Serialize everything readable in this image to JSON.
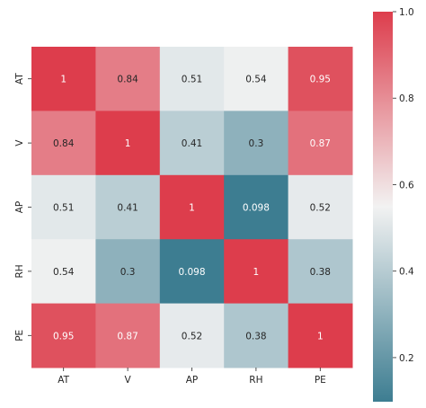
{
  "chart_data": {
    "type": "heatmap",
    "title": "",
    "xlabel": "",
    "ylabel": "",
    "x_labels": [
      "AT",
      "V",
      "AP",
      "RH",
      "PE"
    ],
    "y_labels": [
      "AT",
      "V",
      "AP",
      "RH",
      "PE"
    ],
    "values": [
      [
        1,
        0.84,
        0.51,
        0.54,
        0.95
      ],
      [
        0.84,
        1,
        0.41,
        0.3,
        0.87
      ],
      [
        0.51,
        0.41,
        1,
        0.098,
        0.52
      ],
      [
        0.54,
        0.3,
        0.098,
        1,
        0.38
      ],
      [
        0.95,
        0.87,
        0.52,
        0.38,
        1
      ]
    ],
    "annotations": [
      [
        "1",
        "0.84",
        "0.51",
        "0.54",
        "0.95"
      ],
      [
        "0.84",
        "1",
        "0.41",
        "0.3",
        "0.87"
      ],
      [
        "0.51",
        "0.41",
        "1",
        "0.098",
        "0.52"
      ],
      [
        "0.54",
        "0.3",
        "0.098",
        "1",
        "0.38"
      ],
      [
        "0.95",
        "0.87",
        "0.52",
        "0.38",
        "1"
      ]
    ],
    "colorbar": {
      "range": [
        0.098,
        1.0
      ],
      "ticks": [
        "0.2",
        "0.4",
        "0.6",
        "0.8",
        "1.0"
      ],
      "tick_values": [
        0.2,
        0.4,
        0.6,
        0.8,
        1.0
      ],
      "colormap": "diverging blue-white-red",
      "color_low": "#3d7d91",
      "color_mid": "#f2f2f2",
      "color_high": "#dd3d4c"
    },
    "grid": false,
    "legend": "colorbar-right"
  }
}
